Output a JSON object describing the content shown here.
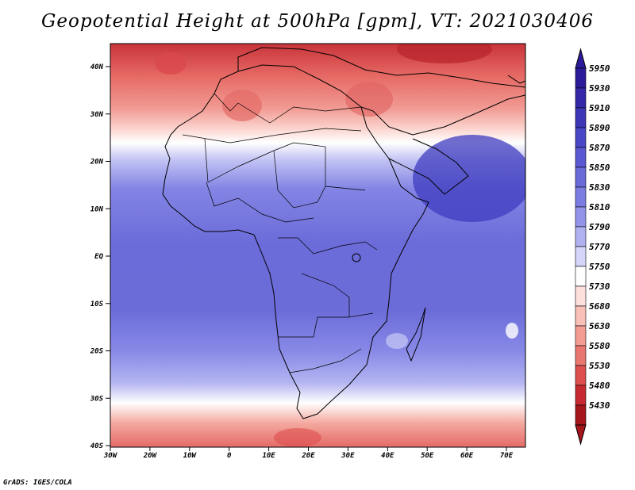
{
  "title": "Geopotential Height at 500hPa [gpm], VT: 2021030406",
  "credit": "GrADS: IGES/COLA",
  "map": {
    "lat_ticks": [
      "40N",
      "30N",
      "20N",
      "10N",
      "EQ",
      "10S",
      "20S",
      "30S",
      "40S"
    ],
    "lon_ticks": [
      "30W",
      "20W",
      "10W",
      "0",
      "10E",
      "20E",
      "30E",
      "40E",
      "50E",
      "60E",
      "70E"
    ]
  },
  "colorbar": {
    "labels": [
      "5950",
      "5930",
      "5910",
      "5890",
      "5870",
      "5850",
      "5830",
      "5810",
      "5790",
      "5770",
      "5750",
      "5730",
      "5680",
      "5630",
      "5580",
      "5530",
      "5480",
      "5430"
    ],
    "colors": [
      "#2b1a99",
      "#3428a8",
      "#3d37b8",
      "#4a47c6",
      "#5a58d2",
      "#6a6adb",
      "#7c7de3",
      "#9293e9",
      "#b0b1f0",
      "#d4d5f8",
      "#ffffff",
      "#fde0dc",
      "#f9c0b8",
      "#f39c92",
      "#ea7670",
      "#dd4e4e",
      "#c62a30",
      "#a4151c"
    ]
  }
}
